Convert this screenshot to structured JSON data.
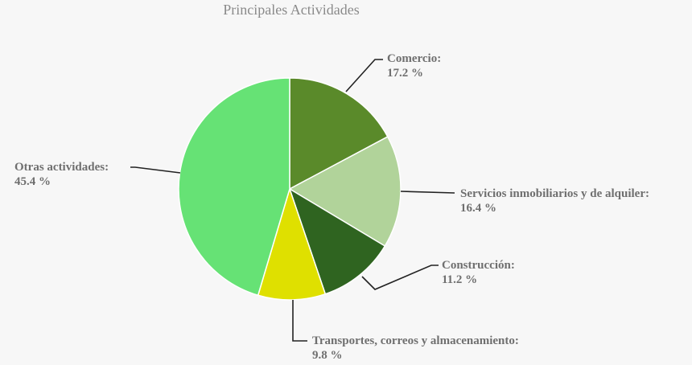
{
  "chart_data": {
    "type": "pie",
    "title": "Principales Actividades",
    "slices": [
      {
        "label": "Comercio:",
        "value_text": "17.2 %",
        "value": 17.2,
        "color": "#5a8a2a"
      },
      {
        "label": "Servicios inmobiliarios y de alquiler:",
        "value_text": "16.4 %",
        "value": 16.4,
        "color": "#b1d39a"
      },
      {
        "label": "Construcción:",
        "value_text": "11.2 %",
        "value": 11.2,
        "color": "#2f6420"
      },
      {
        "label": "Transportes, correos y almacenamiento:",
        "value_text": "9.8 %",
        "value": 9.8,
        "color": "#dfe000"
      },
      {
        "label": "Otras actividades:",
        "value_text": "45.4 %",
        "value": 45.4,
        "color": "#66e275"
      }
    ]
  }
}
